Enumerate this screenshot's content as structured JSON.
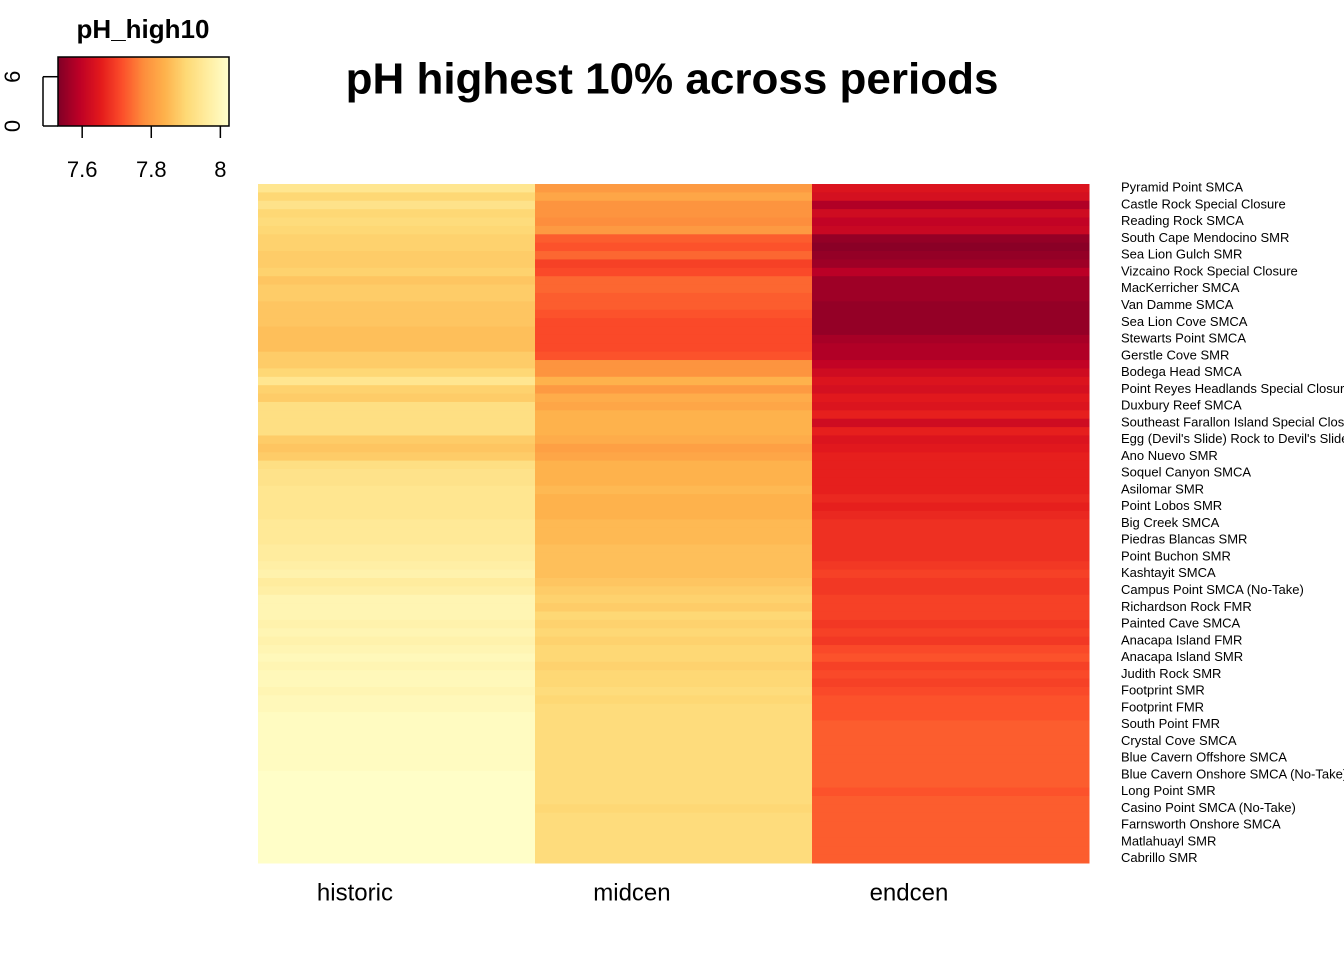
{
  "chart_data": {
    "type": "heatmap",
    "title": "pH highest 10% across periods",
    "categories": [
      "Pyramid Point SMCA",
      null,
      "Castle Rock Special Closure",
      null,
      "Reading Rock SMCA",
      null,
      "South Cape Mendocino SMR",
      null,
      "Sea Lion Gulch SMR",
      null,
      "Vizcaino Rock Special Closure",
      null,
      "MacKerricher SMCA",
      null,
      "Van Damme SMCA",
      null,
      "Sea Lion Cove SMCA",
      null,
      "Stewarts Point SMCA",
      null,
      "Gerstle Cove SMR",
      null,
      "Bodega Head SMCA",
      null,
      "Point Reyes Headlands Special Closure",
      null,
      "Duxbury Reef SMCA",
      null,
      "Southeast Farallon Island Special Closure",
      null,
      "Egg (Devil's Slide) Rock to Devil's Slide Special Closure",
      null,
      "Ano Nuevo SMR",
      null,
      "Soquel Canyon SMCA",
      null,
      "Asilomar SMR",
      null,
      "Point Lobos SMR",
      null,
      "Big Creek SMCA",
      null,
      "Piedras Blancas SMR",
      null,
      "Point Buchon SMR",
      null,
      "Kashtayit SMCA",
      null,
      "Campus Point SMCA (No-Take)",
      null,
      "Richardson Rock FMR",
      null,
      "Painted Cave SMCA",
      null,
      "Anacapa Island FMR",
      null,
      "Anacapa Island SMR",
      null,
      "Judith Rock SMR",
      null,
      "Footprint SMR",
      null,
      "Footprint FMR",
      null,
      "South Point FMR",
      null,
      "Crystal Cove SMCA",
      null,
      "Blue Cavern Offshore SMCA",
      null,
      "Blue Cavern Onshore SMCA (No-Take)",
      null,
      "Long Point SMR",
      null,
      "Casino Point SMCA (No-Take)",
      null,
      "Farnsworth Onshore SMCA",
      null,
      "Matlahuayl SMR",
      null,
      "Cabrillo SMR"
    ],
    "series": [
      {
        "name": "historic",
        "values": [
          7.94,
          7.9,
          7.93,
          7.9,
          7.91,
          7.9,
          7.89,
          7.89,
          7.88,
          7.88,
          7.89,
          7.87,
          7.88,
          7.88,
          7.87,
          7.87,
          7.87,
          7.86,
          7.86,
          7.86,
          7.88,
          7.88,
          7.9,
          7.94,
          7.89,
          7.88,
          7.92,
          7.92,
          7.92,
          7.92,
          7.88,
          7.87,
          7.88,
          7.92,
          7.93,
          7.93,
          7.94,
          7.94,
          7.94,
          7.94,
          7.95,
          7.95,
          7.95,
          7.96,
          7.96,
          7.97,
          7.98,
          7.96,
          7.97,
          7.99,
          7.99,
          7.99,
          7.98,
          7.99,
          7.98,
          7.99,
          8.0,
          7.99,
          8.0,
          8.0,
          7.99,
          8.0,
          8.0,
          8.01,
          8.01,
          8.01,
          8.01,
          8.01,
          8.01,
          8.01,
          8.02,
          8.02,
          8.02,
          8.02,
          8.02,
          8.02,
          8.02,
          8.02,
          8.02,
          8.02,
          8.02
        ]
      },
      {
        "name": "midcen",
        "values": [
          7.8,
          7.82,
          7.79,
          7.79,
          7.78,
          7.8,
          7.73,
          7.72,
          7.74,
          7.7,
          7.71,
          7.74,
          7.74,
          7.73,
          7.73,
          7.72,
          7.71,
          7.71,
          7.71,
          7.71,
          7.72,
          7.79,
          7.79,
          7.84,
          7.8,
          7.83,
          7.82,
          7.84,
          7.84,
          7.84,
          7.83,
          7.81,
          7.82,
          7.84,
          7.84,
          7.84,
          7.85,
          7.84,
          7.84,
          7.84,
          7.85,
          7.85,
          7.85,
          7.86,
          7.86,
          7.86,
          7.86,
          7.87,
          7.88,
          7.89,
          7.88,
          7.9,
          7.89,
          7.9,
          7.89,
          7.9,
          7.9,
          7.89,
          7.9,
          7.9,
          7.91,
          7.9,
          7.91,
          7.91,
          7.91,
          7.91,
          7.91,
          7.91,
          7.91,
          7.91,
          7.91,
          7.91,
          7.91,
          7.91,
          7.9,
          7.91,
          7.91,
          7.91,
          7.91,
          7.91,
          7.91
        ]
      },
      {
        "name": "endcen",
        "values": [
          7.64,
          7.63,
          7.58,
          7.62,
          7.6,
          7.61,
          7.55,
          7.54,
          7.55,
          7.56,
          7.59,
          7.56,
          7.56,
          7.56,
          7.55,
          7.55,
          7.55,
          7.55,
          7.57,
          7.58,
          7.58,
          7.6,
          7.62,
          7.64,
          7.63,
          7.65,
          7.64,
          7.66,
          7.62,
          7.66,
          7.64,
          7.65,
          7.66,
          7.66,
          7.66,
          7.66,
          7.66,
          7.67,
          7.66,
          7.67,
          7.68,
          7.68,
          7.68,
          7.68,
          7.68,
          7.69,
          7.7,
          7.69,
          7.69,
          7.7,
          7.7,
          7.7,
          7.69,
          7.7,
          7.69,
          7.71,
          7.72,
          7.7,
          7.71,
          7.7,
          7.71,
          7.72,
          7.72,
          7.72,
          7.73,
          7.73,
          7.73,
          7.73,
          7.73,
          7.73,
          7.73,
          7.73,
          7.72,
          7.73,
          7.73,
          7.73,
          7.73,
          7.73,
          7.73,
          7.73,
          7.73
        ]
      }
    ],
    "legend": {
      "title": "pH_high10",
      "xlim": [
        7.53,
        8.025
      ],
      "xticks": [
        7.6,
        7.8,
        8
      ],
      "ylim": [
        0,
        8.4
      ],
      "yticks": [
        0,
        6
      ]
    },
    "colors": [
      "#800026",
      "#bd0026",
      "#e31a1c",
      "#fc4e2a",
      "#fd8d3c",
      "#feb24c",
      "#fed976",
      "#ffeda0",
      "#ffffcc"
    ]
  }
}
